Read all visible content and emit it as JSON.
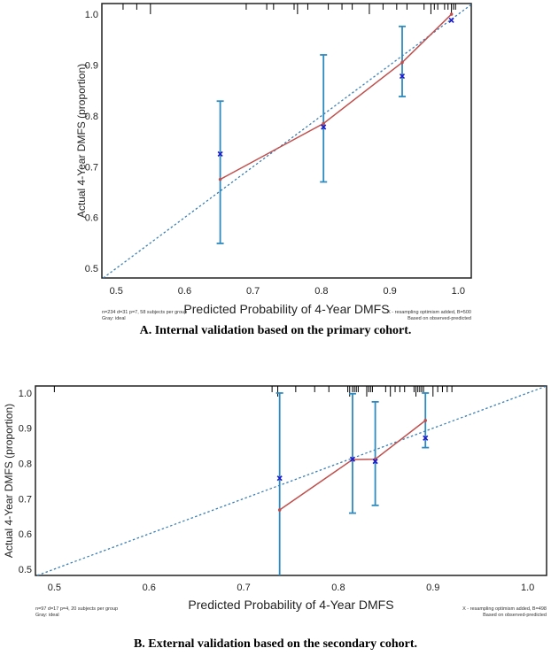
{
  "chart_data": [
    {
      "type": "line",
      "caption": "A. Internal validation based on the primary cohort.",
      "xlabel": "Predicted Probability of 4-Year DMFS",
      "ylabel": "Actual 4-Year DMFS (proportion)",
      "xlim": [
        0.479,
        1.019
      ],
      "ylim": [
        0.481,
        1.021
      ],
      "xticks": [
        "0.5",
        "0.6",
        "0.7",
        "0.8",
        "0.9",
        "1.0"
      ],
      "yticks": [
        "0.5",
        "0.6",
        "0.7",
        "0.8",
        "0.9",
        "1.0"
      ],
      "note_left": [
        "n=234 d=31 p=7, 58 subjects per group",
        "Gray: ideal"
      ],
      "note_right": [
        "X - resampling optimism added, B=500",
        "Based on observed-predicted"
      ],
      "predicted": [
        0.652,
        0.803,
        0.918,
        0.99
      ],
      "apparent": [
        0.675,
        0.785,
        0.905,
        1.0
      ],
      "bias_corrected": [
        0.725,
        0.778,
        0.878,
        0.988
      ],
      "ci_lower": [
        0.549,
        0.67,
        0.838,
        null
      ],
      "ci_upper": [
        0.829,
        0.92,
        0.976,
        null
      ],
      "rug": [
        0.51,
        0.53,
        0.55,
        0.69,
        0.72,
        0.73,
        0.76,
        0.765,
        0.78,
        0.81,
        0.83,
        0.845,
        0.87,
        0.89,
        0.91,
        0.925,
        0.95,
        0.96,
        0.965,
        0.97,
        0.98,
        0.985,
        0.99,
        0.993,
        0.996
      ],
      "colors": {
        "apparent": "#c0504d",
        "ideal": "#3a7fb5",
        "ci": "#2e8bc0",
        "corrected": "#1a1acc",
        "rug": "#000000"
      }
    },
    {
      "type": "line",
      "caption": "B. External validation based on the secondary cohort.",
      "xlabel": "Predicted Probability of 4-Year DMFS",
      "ylabel": "Actual 4-Year DMFS (proportion)",
      "xlim": [
        0.48,
        1.02
      ],
      "ylim": [
        0.482,
        1.02
      ],
      "xticks": [
        "0.5",
        "0.6",
        "0.7",
        "0.8",
        "0.9",
        "1.0"
      ],
      "yticks": [
        "0.5",
        "0.6",
        "0.7",
        "0.8",
        "0.9",
        "1.0"
      ],
      "note_left": [
        "n=97 d=17 p=4, 20 subjects per group",
        "Gray: ideal"
      ],
      "note_right": [
        "X - resampling optimism added, B=498",
        "Based on observed-predicted"
      ],
      "predicted": [
        0.738,
        0.815,
        0.839,
        0.892
      ],
      "apparent": [
        0.668,
        0.811,
        0.812,
        0.922
      ],
      "bias_corrected": [
        0.758,
        0.812,
        0.806,
        0.872
      ],
      "ci_lower": [
        0.45,
        0.659,
        0.681,
        0.845
      ],
      "ci_upper": [
        1.0,
        0.998,
        0.975,
        1.0
      ],
      "rug": [
        0.5,
        0.73,
        0.736,
        0.755,
        0.775,
        0.79,
        0.81,
        0.812,
        0.815,
        0.817,
        0.819,
        0.821,
        0.83,
        0.832,
        0.834,
        0.836,
        0.85,
        0.855,
        0.86,
        0.865,
        0.87,
        0.88,
        0.882,
        0.884,
        0.886,
        0.888,
        0.89,
        0.9,
        0.905,
        0.91,
        0.915,
        0.92
      ],
      "colors": {
        "apparent": "#c0504d",
        "ideal": "#3a7fb5",
        "ci": "#2e8bc0",
        "corrected": "#1a1acc",
        "rug": "#000000"
      }
    }
  ]
}
